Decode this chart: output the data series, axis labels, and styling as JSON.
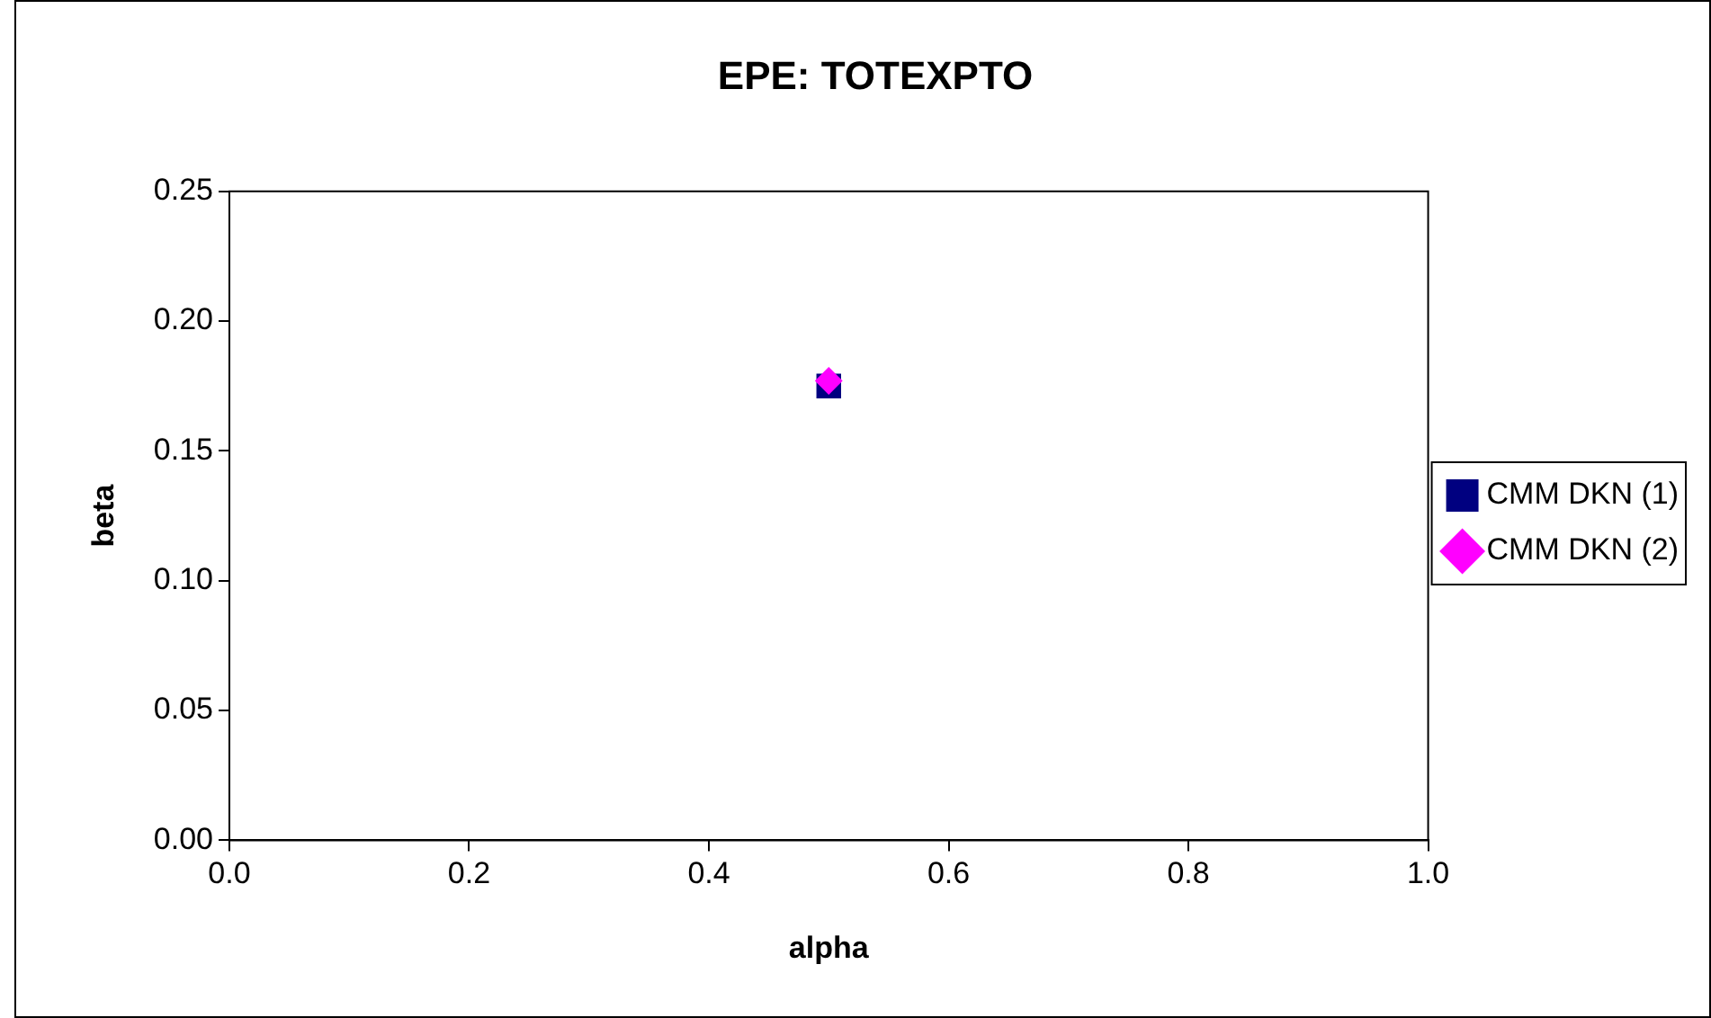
{
  "chart_data": {
    "type": "scatter",
    "title": "EPE: TOTEXPTO",
    "xlabel": "alpha",
    "ylabel": "beta",
    "xlim": [
      0,
      1
    ],
    "xticks": [
      {
        "value": 0,
        "label": "0.0"
      },
      {
        "value": 0.2,
        "label": "0.2"
      },
      {
        "value": 0.4,
        "label": "0.4"
      },
      {
        "value": 0.6,
        "label": "0.6"
      },
      {
        "value": 0.8,
        "label": "0.8"
      },
      {
        "value": 1,
        "label": "1.0"
      }
    ],
    "ylim": [
      0,
      0.25
    ],
    "yticks": [
      {
        "value": 0,
        "label": "0.00"
      },
      {
        "value": 0.05,
        "label": "0.05"
      },
      {
        "value": 0.1,
        "label": "0.10"
      },
      {
        "value": 0.15,
        "label": "0.15"
      },
      {
        "value": 0.2,
        "label": "0.20"
      },
      {
        "value": 0.25,
        "label": "0.25"
      }
    ],
    "grid": false,
    "legend": "right",
    "series": [
      {
        "name": "CMM DKN (1)",
        "color": "#000080",
        "marker": "square",
        "x": [
          0.5
        ],
        "values": [
          0.175
        ]
      },
      {
        "name": "CMM DKN (2)",
        "color": "#ff00ff",
        "marker": "diamond",
        "x": [
          0.5
        ],
        "values": [
          0.177
        ]
      }
    ]
  }
}
